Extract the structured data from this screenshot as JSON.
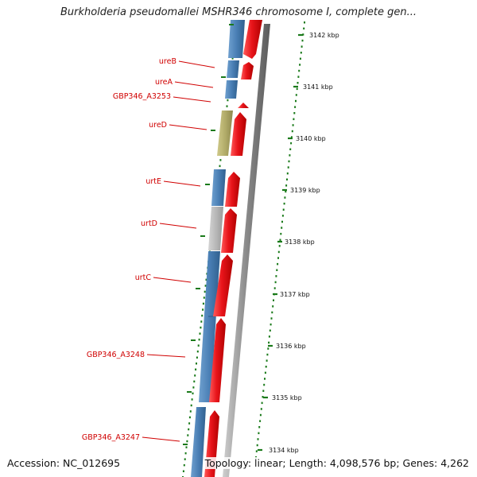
{
  "title": "Burkholderia pseudomallei MSHR346 chromosome I, complete gen...",
  "footer": {
    "accession": "Accession: NC_012695",
    "info": "Topology: linear; Length: 4,098,576 bp; Genes: 4,262"
  },
  "scale": {
    "unit": "kbp",
    "ticks": [
      "3142 kbp",
      "3141 kbp",
      "3140 kbp",
      "3139 kbp",
      "3138 kbp",
      "3137 kbp",
      "3136 kbp",
      "3135 kbp",
      "3134 kbp"
    ]
  },
  "genes": [
    {
      "name": "ureB",
      "color": "#4a7fb5"
    },
    {
      "name": "ureA",
      "color": "#4a7fb5"
    },
    {
      "name": "GBP346_A3253",
      "color": "#4a7fb5"
    },
    {
      "name": "ureD",
      "color": "#b3ad6a"
    },
    {
      "name": "urtE",
      "color": "#4a7fb5"
    },
    {
      "name": "urtD",
      "color": "#b8b8b8"
    },
    {
      "name": "urtC",
      "color": "#4a7fb5"
    },
    {
      "name": "GBP346_A3248",
      "color": "#4a7fb5"
    },
    {
      "name": "GBP346_A3247",
      "color": "#4a7fb5"
    }
  ],
  "colors": {
    "cds": "#e8141a",
    "axis": "#888888",
    "dots": "#1a7a1a",
    "label": "#d00000"
  }
}
